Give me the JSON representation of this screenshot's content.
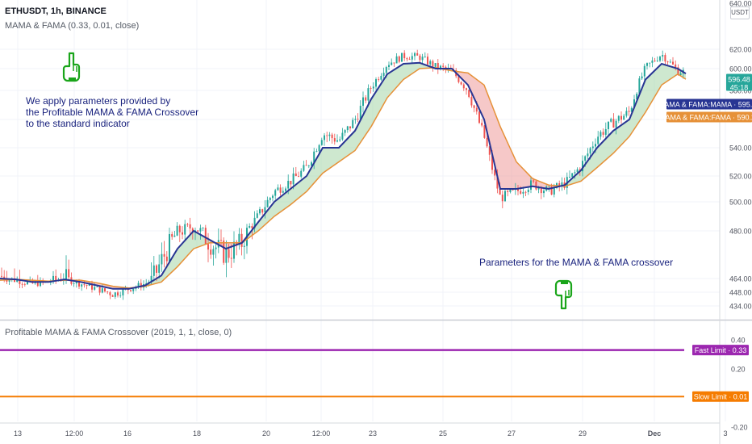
{
  "main_pane": {
    "symbol_line": "ETHUSDT, 1h, BINANCE",
    "indicator_line": "MAMA & FAMA (0.33, 0.01, close)",
    "currency_badge": "USDT",
    "annotation_1": "We apply parameters provided by\nthe Profitable MAMA & FAMA Crossover\nto the standard indicator",
    "annotation_2": "Parameters for the MAMA & FAMA crossover"
  },
  "sub_pane": {
    "indicator_line": "Profitable MAMA & FAMA Crossover (2019, 1, 1, close, 0)"
  },
  "colors": {
    "up_candle": "#26a69a",
    "down_candle": "#ef5350",
    "mama": "#283593",
    "fama": "#e69138",
    "bull_fill": "#a5d6a7",
    "bear_fill": "#ef9a9a",
    "fast_limit": "#9c27b0",
    "slow_limit": "#f57c00",
    "hand_icon": "#1aa51a"
  },
  "chart_data": [
    {
      "type": "line",
      "title": "ETHUSDT, 1h, BINANCE",
      "subtitle": "MAMA & FAMA (0.33, 0.01, close)",
      "x_tick_labels": [
        "13",
        "12:00",
        "16",
        "18",
        "20",
        "12:00",
        "23",
        "25",
        "27",
        "29",
        "Dec",
        "3"
      ],
      "y_tick_labels": [
        434,
        448,
        464,
        480,
        500,
        520,
        540,
        560,
        580,
        600,
        620,
        640
      ],
      "ylim": [
        424,
        642
      ],
      "grid": true,
      "x_points": [
        0,
        20,
        40,
        60,
        80,
        100,
        120,
        140,
        160,
        180,
        200,
        220,
        240,
        260,
        280,
        300,
        320,
        340,
        360,
        380,
        400,
        420,
        440,
        460,
        480,
        500,
        520,
        540,
        560,
        580,
        600,
        620,
        640,
        660,
        680,
        700,
        720,
        740,
        760,
        780,
        800,
        820,
        840,
        850
      ],
      "price_close": [
        465,
        462,
        458,
        460,
        464,
        458,
        452,
        446,
        452,
        458,
        470,
        480,
        483,
        476,
        472,
        476,
        490,
        508,
        516,
        526,
        550,
        545,
        560,
        583,
        605,
        613,
        612,
        602,
        598,
        580,
        548,
        503,
        508,
        514,
        508,
        514,
        527,
        548,
        558,
        565,
        601,
        615,
        598,
        596.48
      ],
      "series": [
        {
          "name": "MAMA",
          "values": [
            464,
            463,
            460,
            460,
            463,
            460,
            456,
            452,
            452,
            456,
            465,
            474,
            480,
            477,
            474,
            476,
            486,
            500,
            510,
            520,
            540,
            540,
            552,
            574,
            595,
            605,
            606,
            600,
            600,
            585,
            560,
            510,
            510,
            512,
            510,
            513,
            524,
            540,
            552,
            560,
            590,
            605,
            600,
            595.46
          ]
        },
        {
          "name": "FAMA",
          "values": [
            462,
            463,
            462,
            461,
            462,
            462,
            459,
            455,
            453,
            455,
            460,
            468,
            474,
            476,
            476,
            476,
            480,
            490,
            498,
            508,
            522,
            530,
            538,
            555,
            575,
            590,
            600,
            601,
            598,
            596,
            585,
            555,
            530,
            518,
            513,
            512,
            516,
            526,
            536,
            548,
            565,
            585,
            595,
            590.29
          ]
        }
      ],
      "price_labels": [
        {
          "text": "596.48",
          "sub": "45:18"
        },
        {
          "text": "MAMA & FAMA:MAMA · 595.46"
        },
        {
          "text": "MAMA & FAMA:FAMA · 590.29"
        }
      ]
    },
    {
      "type": "line",
      "subtitle": "Profitable MAMA & FAMA Crossover (2019, 1, 1, close, 0)",
      "y_tick_labels": [
        "0.40",
        "0.20",
        "-0.20"
      ],
      "ylim": [
        -0.3,
        0.45
      ],
      "series": [
        {
          "name": "Fast Limit",
          "value": 0.33
        },
        {
          "name": "Slow Limit",
          "value": 0.01
        }
      ],
      "level_labels": [
        {
          "text": "Fast Limit · 0.33"
        },
        {
          "text": "Slow Limit · 0.01"
        }
      ]
    }
  ]
}
